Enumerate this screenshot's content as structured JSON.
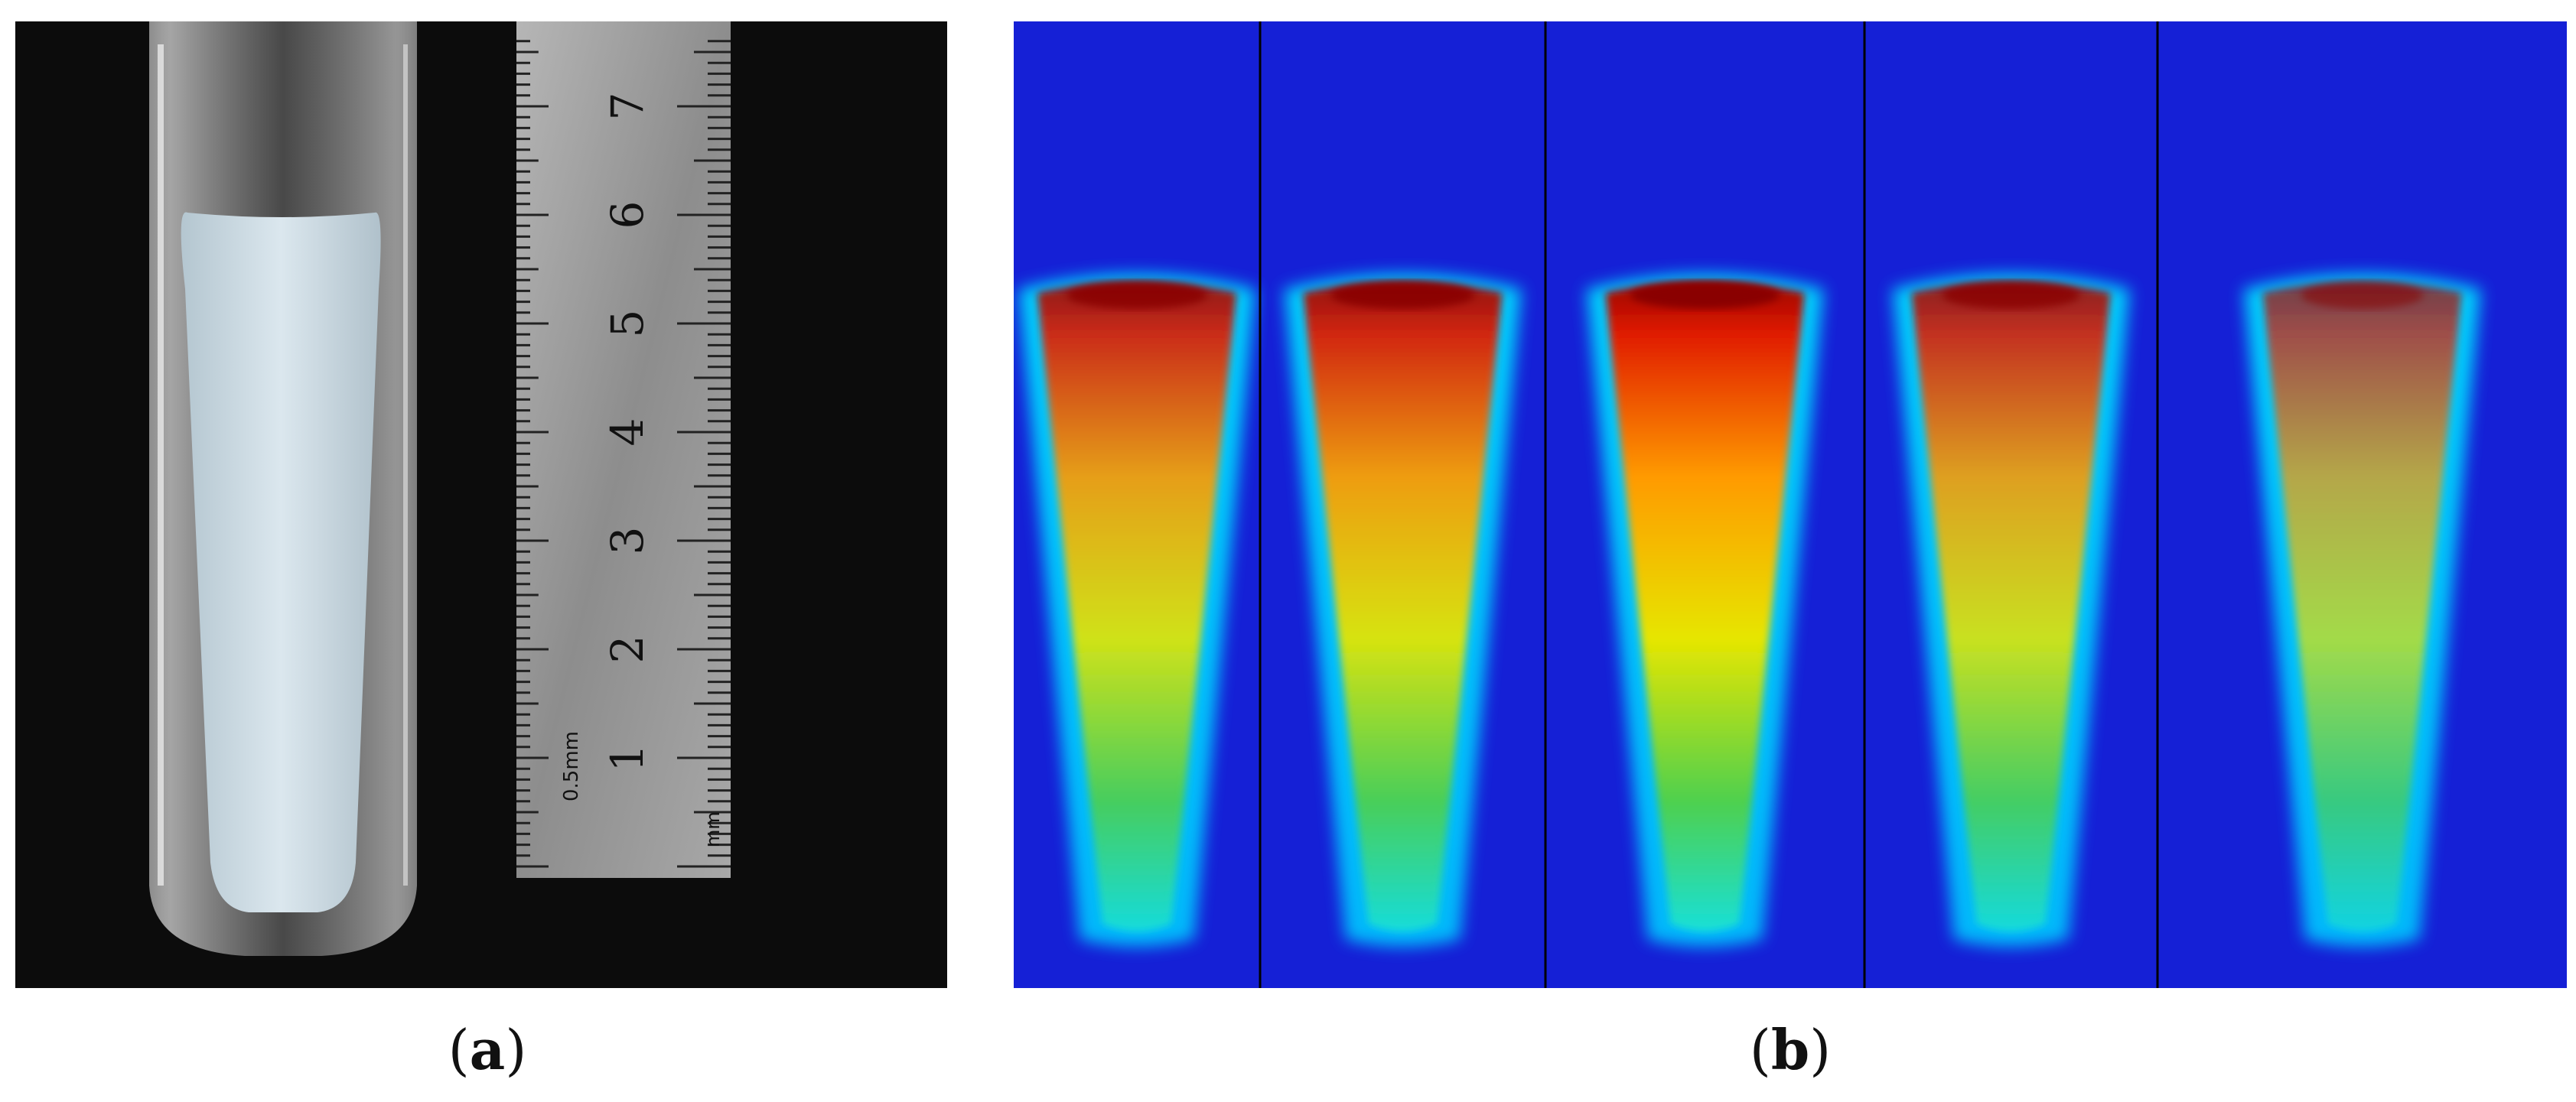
{
  "captions": {
    "a": {
      "open": "(",
      "letter": "a",
      "close": ")"
    },
    "b": {
      "open": "(",
      "letter": "b",
      "close": ")"
    }
  },
  "ruler": {
    "cm_labels": [
      "1",
      "2",
      "3",
      "4",
      "5",
      "6",
      "7"
    ],
    "side_label": "0.5mm",
    "unit_label": "mm"
  },
  "colors": {
    "background": "#ffffff",
    "photo_background": "#0c0c0c",
    "map_background": "#1520d6",
    "jet_hot": "#a00000",
    "jet_cold": "#1520d6"
  },
  "maps": {
    "count": 5,
    "relative_intensity": [
      0.85,
      0.9,
      1.0,
      0.8,
      0.55
    ]
  }
}
